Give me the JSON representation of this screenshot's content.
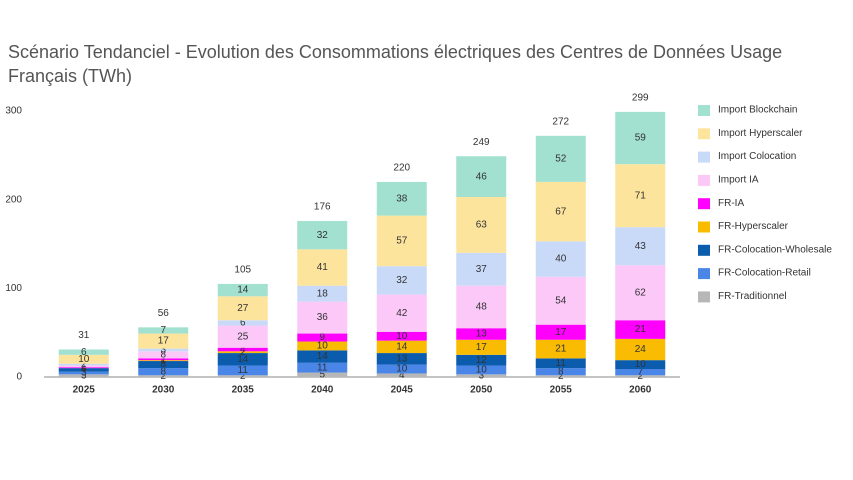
{
  "chart_data": {
    "type": "stacked-bar",
    "title": "Scénario Tendanciel - Evolution des Consommations électriques des Centres de Données Usage Français (TWh)",
    "categories": [
      "2025",
      "2030",
      "2035",
      "2040",
      "2045",
      "2050",
      "2055",
      "2060"
    ],
    "series": [
      {
        "name": "FR-Traditionnel",
        "color": "#b7b7b7",
        "values": [
          3,
          2,
          2,
          5,
          4,
          3,
          2,
          2
        ]
      },
      {
        "name": "FR-Colocation-Retail",
        "color": "#4a86e8",
        "values": [
          3,
          8,
          11,
          11,
          10,
          10,
          8,
          7
        ]
      },
      {
        "name": "FR-Colocation-Wholesale",
        "color": "#0b5cad",
        "values": [
          4,
          8,
          14,
          14,
          13,
          12,
          11,
          10
        ]
      },
      {
        "name": "FR-Hyperscaler",
        "color": "#f9bc02",
        "values": [
          0,
          1,
          2,
          10,
          14,
          17,
          21,
          24
        ]
      },
      {
        "name": "FR-IA",
        "color": "#ff00ff",
        "values": [
          1,
          2,
          4,
          9,
          10,
          13,
          17,
          21
        ]
      },
      {
        "name": "Import IA",
        "color": "#fbc8f8",
        "values": [
          2,
          8,
          25,
          36,
          42,
          48,
          54,
          62
        ]
      },
      {
        "name": "Import Colocation",
        "color": "#c9daf8",
        "values": [
          2,
          3,
          6,
          18,
          32,
          37,
          40,
          43
        ]
      },
      {
        "name": "Import Hyperscaler",
        "color": "#fde49c",
        "values": [
          10,
          17,
          27,
          41,
          57,
          63,
          67,
          71
        ]
      },
      {
        "name": "Import Blockchain",
        "color": "#a2e1cf",
        "values": [
          6,
          7,
          14,
          32,
          38,
          46,
          52,
          59
        ]
      }
    ],
    "totals": [
      31,
      56,
      105,
      176,
      220,
      249,
      272,
      299
    ],
    "ylim": [
      0,
      300
    ],
    "yticks": [
      0,
      100,
      200,
      300
    ],
    "grid": false
  }
}
